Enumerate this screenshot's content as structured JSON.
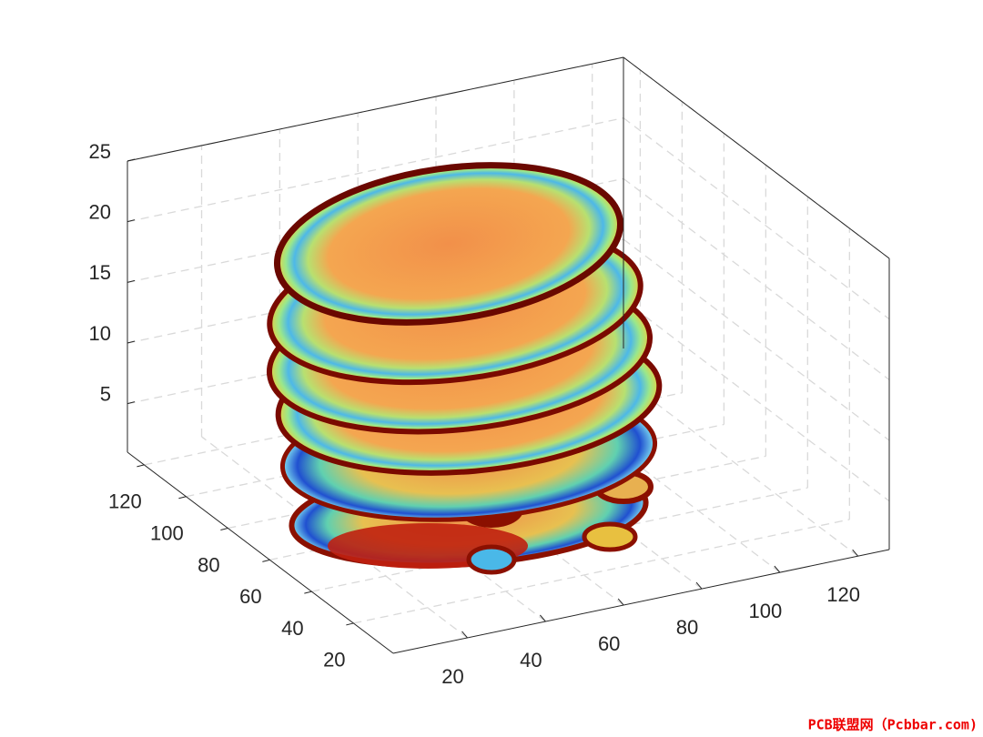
{
  "chart_data": {
    "type": "slice3d",
    "xlim": [
      1,
      128
    ],
    "ylim": [
      1,
      128
    ],
    "zlim": [
      1,
      25
    ],
    "xticks": [
      20,
      40,
      60,
      80,
      100,
      120
    ],
    "yticks": [
      20,
      40,
      60,
      80,
      100,
      120
    ],
    "zticks": [
      5,
      10,
      15,
      20,
      25
    ],
    "grid": true
  },
  "watermark": "PCB联盟网（Pcbbar.com)"
}
